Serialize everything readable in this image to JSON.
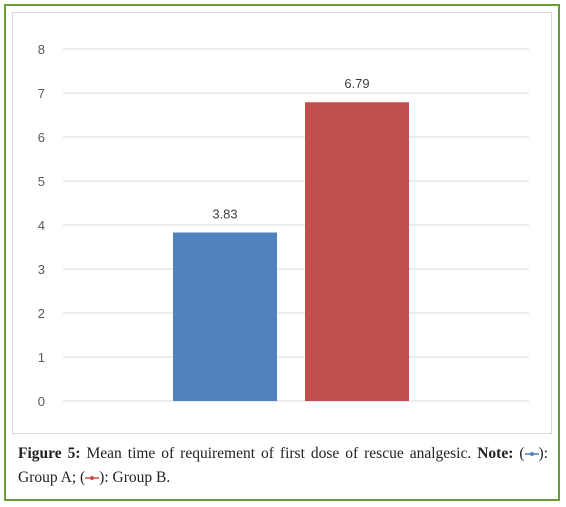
{
  "chart_data": {
    "type": "bar",
    "categories": [
      "Group A",
      "Group B"
    ],
    "values": [
      3.83,
      6.79
    ],
    "data_labels": [
      "3.83",
      "6.79"
    ],
    "colors": [
      "#4f81bd",
      "#c0504d"
    ],
    "ylim": [
      0,
      8
    ],
    "yticks": [
      "0",
      "1",
      "2",
      "3",
      "4",
      "5",
      "6",
      "7",
      "8"
    ],
    "grid": true,
    "title": "",
    "xlabel": "",
    "ylabel": ""
  },
  "caption": {
    "figure_label": "Figure 5:",
    "text": " Mean time of requirement of first dose of rescue analgesic. ",
    "note_label": "Note:",
    "paren_open_a": " (",
    "paren_close_a": "): Group A; (",
    "paren_close_b": "): Group B."
  }
}
